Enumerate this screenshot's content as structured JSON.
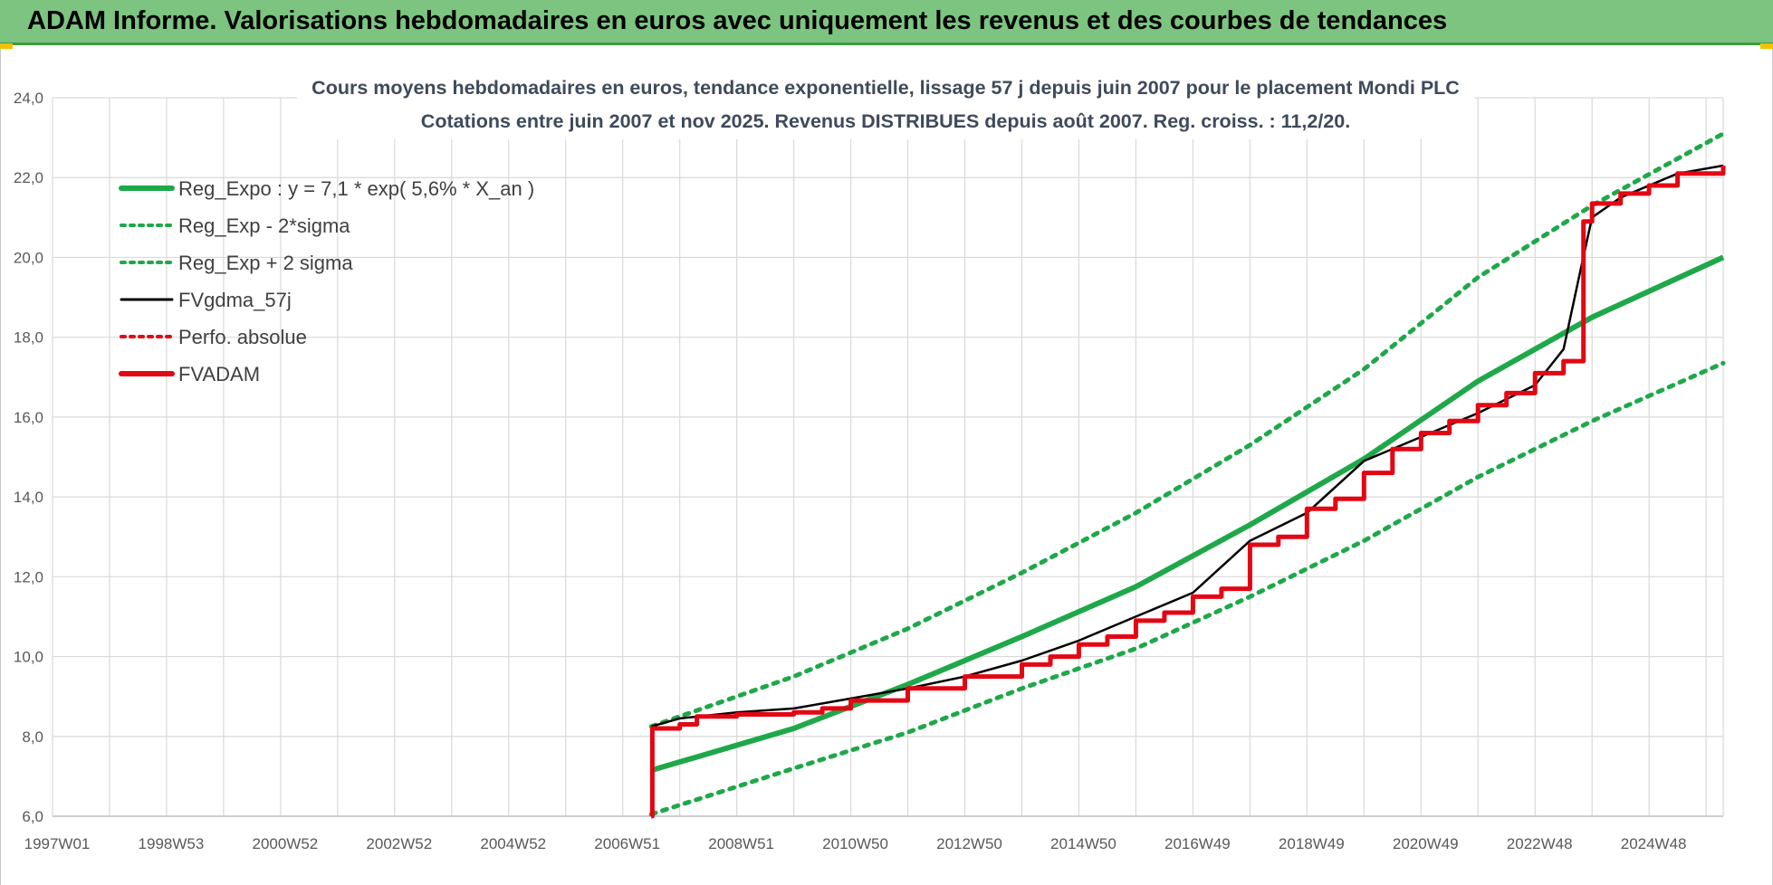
{
  "banner": {
    "title": "ADAM Informe. Valorisations hebdomadaires en euros avec uniquement les revenus et des courbes de tendances"
  },
  "colors": {
    "banner_bg": "#7cc47f",
    "trend_green": "#1fa84a",
    "ma_black": "#000000",
    "adam_red": "#e30613",
    "grid": "#d9d9d9"
  },
  "chart_data": {
    "type": "line",
    "title": "Cours moyens hebdomadaires en euros, tendance exponentielle, lissage 57 j depuis juin 2007 pour le placement Mondi PLC",
    "subtitle": "Cotations entre juin 2007 et nov 2025.  Revenus DISTRIBUES depuis août 2007.  Reg. croiss. : 11,2/20.",
    "x_tick_labels": [
      "1997W01",
      "1998W53",
      "2000W52",
      "2002W52",
      "2004W52",
      "2006W51",
      "2008W51",
      "2010W50",
      "2012W50",
      "2014W50",
      "2016W49",
      "2018W49",
      "2020W49",
      "2022W48",
      "2024W48"
    ],
    "x_range": [
      1997.0,
      2026.3
    ],
    "ylim": [
      6.0,
      24.0
    ],
    "y_ticks": [
      "6,0",
      "8,0",
      "10,0",
      "12,0",
      "14,0",
      "16,0",
      "18,0",
      "20,0",
      "22,0",
      "24,0"
    ],
    "grid": true,
    "legend_position": "top-left",
    "legend": [
      {
        "label": "Reg_Expo : y = 7,1 * exp( 5,6% *  X_an )",
        "style": "solid",
        "color": "#1fa84a"
      },
      {
        "label": "Reg_Exp - 2*sigma",
        "style": "dotted",
        "color": "#1fa84a"
      },
      {
        "label": "Reg_Exp + 2 sigma",
        "style": "dotted",
        "color": "#1fa84a"
      },
      {
        "label": "FVgdma_57j",
        "style": "thin",
        "color": "#000000"
      },
      {
        "label": "Perfo. absolue",
        "style": "dotted",
        "color": "#e30613"
      },
      {
        "label": "FVADAM",
        "style": "solid",
        "color": "#e30613"
      }
    ],
    "series": [
      {
        "name": "Reg_Expo : y = 7,1 * exp( 5,6% *  X_an )",
        "x": [
          2007.5,
          2010,
          2012,
          2014,
          2016,
          2018,
          2020,
          2022,
          2024,
          2026.3
        ],
        "values": [
          7.15,
          8.2,
          9.3,
          10.5,
          11.75,
          13.3,
          14.95,
          16.9,
          18.5,
          20.0
        ]
      },
      {
        "name": "Reg_Exp - 2*sigma",
        "x": [
          2007.5,
          2010,
          2012,
          2014,
          2016,
          2018,
          2020,
          2022,
          2024,
          2026.3
        ],
        "values": [
          6.05,
          7.2,
          8.1,
          9.2,
          10.2,
          11.5,
          12.9,
          14.5,
          15.9,
          17.35
        ]
      },
      {
        "name": "Reg_Exp + 2 sigma",
        "x": [
          2007.5,
          2010,
          2012,
          2014,
          2016,
          2018,
          2020,
          2022,
          2024,
          2026.3
        ],
        "values": [
          8.25,
          9.5,
          10.7,
          12.1,
          13.6,
          15.3,
          17.2,
          19.5,
          21.3,
          23.1
        ]
      },
      {
        "name": "FVgdma_57j",
        "x": [
          2007.5,
          2008,
          2009,
          2010,
          2011,
          2012,
          2013,
          2014,
          2015,
          2016,
          2017,
          2018,
          2019,
          2020,
          2021,
          2022,
          2023,
          2023.5,
          2023.8,
          2024,
          2024.5,
          2025,
          2025.5,
          2026.3
        ],
        "values": [
          8.25,
          8.45,
          8.6,
          8.7,
          8.95,
          9.2,
          9.5,
          9.9,
          10.4,
          11.0,
          11.6,
          12.9,
          13.6,
          14.9,
          15.5,
          16.1,
          16.8,
          17.7,
          19.7,
          21.0,
          21.5,
          21.8,
          22.1,
          22.3
        ]
      },
      {
        "name": "FVADAM",
        "x": [
          2007.5,
          2007.52,
          2008.0,
          2008.3,
          2009.0,
          2010.0,
          2010.5,
          2011.0,
          2012.0,
          2013.0,
          2014.0,
          2014.5,
          2015.0,
          2015.5,
          2016.0,
          2016.5,
          2017.0,
          2017.5,
          2018.0,
          2018.5,
          2019.0,
          2019.5,
          2020.0,
          2020.5,
          2021.0,
          2021.5,
          2022.0,
          2022.5,
          2023.0,
          2023.5,
          2023.85,
          2024.0,
          2024.5,
          2025.0,
          2025.5,
          2026.3
        ],
        "values": [
          6.0,
          8.2,
          8.3,
          8.5,
          8.55,
          8.6,
          8.7,
          8.9,
          9.2,
          9.5,
          9.8,
          10.0,
          10.3,
          10.5,
          10.9,
          11.1,
          11.5,
          11.7,
          12.8,
          13.0,
          13.7,
          13.95,
          14.6,
          15.2,
          15.6,
          15.9,
          16.3,
          16.6,
          17.1,
          17.4,
          20.9,
          21.35,
          21.6,
          21.8,
          22.1,
          22.3
        ]
      }
    ]
  }
}
